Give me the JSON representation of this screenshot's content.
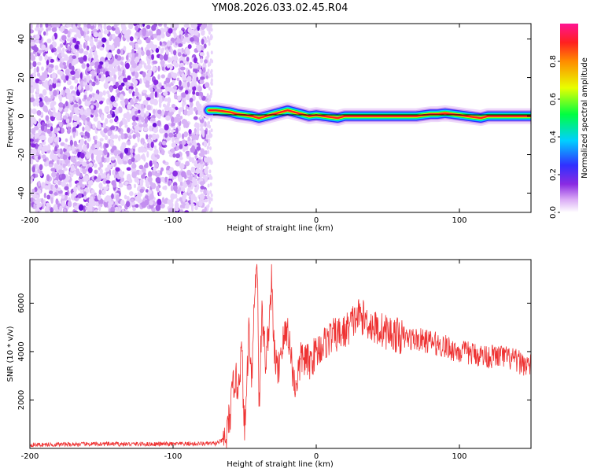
{
  "figure": {
    "title": "YM08.2026.033.02.45.R04"
  },
  "chart_data": [
    {
      "type": "heatmap",
      "title": "",
      "xlabel": "Height of straight line (km)",
      "ylabel": "Frequency (Hz)",
      "xlim": [
        -200,
        150
      ],
      "ylim": [
        -50,
        48
      ],
      "xticks": [
        -200,
        -100,
        0,
        100
      ],
      "yticks": [
        -40,
        -20,
        0,
        20,
        40
      ],
      "noise_region_x": [
        -200,
        -76
      ],
      "signal_track": {
        "x": [
          -75,
          -70,
          -65,
          -60,
          -55,
          -50,
          -45,
          -40,
          -35,
          -30,
          -25,
          -20,
          -15,
          -10,
          -5,
          0,
          5,
          10,
          15,
          20,
          25,
          30,
          40,
          50,
          60,
          70,
          80,
          85,
          90,
          95,
          100,
          105,
          110,
          115,
          120,
          130,
          140,
          150
        ],
        "y": [
          3,
          3,
          2.5,
          2,
          1,
          0.5,
          0,
          -1,
          0,
          1,
          2,
          3,
          2,
          1,
          0,
          0.5,
          0,
          -0.5,
          -1,
          0,
          0,
          0,
          0,
          0,
          0,
          0,
          1,
          1,
          1.5,
          1,
          0.5,
          0,
          -0.5,
          -1,
          0,
          0,
          0,
          0
        ]
      },
      "colorbar": {
        "label": "Normalized spectral amplitude",
        "ticks": [
          0.0,
          0.2,
          0.4,
          0.6,
          0.8
        ],
        "range": [
          0,
          1
        ]
      }
    },
    {
      "type": "line",
      "title": "",
      "xlabel": "Height of straight line (km)",
      "ylabel": "SNR (10 * v/v)",
      "xlim": [
        -200,
        150
      ],
      "ylim": [
        0,
        7800
      ],
      "xticks": [
        -200,
        -100,
        0,
        100
      ],
      "yticks": [
        2000,
        4000,
        6000
      ],
      "series": [
        {
          "name": "SNR",
          "color": "#ee3333",
          "x": [
            -200,
            -150,
            -100,
            -70,
            -63,
            -60,
            -57,
            -55,
            -52,
            -50,
            -47,
            -45,
            -43,
            -41,
            -40,
            -38,
            -35,
            -31,
            -30,
            -27,
            -25,
            -20,
            -15,
            -10,
            -5,
            0,
            5,
            10,
            15,
            20,
            25,
            30,
            35,
            40,
            50,
            60,
            70,
            80,
            90,
            100,
            110,
            120,
            130,
            140,
            150
          ],
          "y": [
            150,
            180,
            180,
            200,
            400,
            1500,
            3000,
            2500,
            4000,
            500,
            5000,
            3000,
            6500,
            7800,
            1500,
            5500,
            3500,
            7000,
            4500,
            3000,
            4000,
            5000,
            2500,
            3800,
            3500,
            4000,
            4300,
            4600,
            4700,
            4800,
            5200,
            5500,
            5300,
            5000,
            4800,
            4600,
            4500,
            4400,
            4200,
            4000,
            3900,
            3800,
            3800,
            3600,
            3400
          ]
        }
      ]
    }
  ]
}
